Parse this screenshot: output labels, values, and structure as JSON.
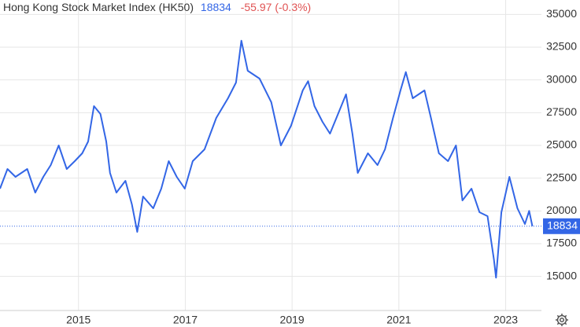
{
  "chart_data": {
    "type": "line",
    "title": "Hong Kong Stock Market Index (HK50)",
    "last_value": 18834,
    "change": "-55.97 (-0.3%)",
    "series": [
      {
        "name": "HK50",
        "color": "#3366e6",
        "x": [
          2013.53,
          2013.67,
          2013.82,
          2014.04,
          2014.19,
          2014.34,
          2014.48,
          2014.63,
          2014.78,
          2014.93,
          2015.07,
          2015.18,
          2015.29,
          2015.41,
          2015.52,
          2015.59,
          2015.71,
          2015.88,
          2016.0,
          2016.1,
          2016.21,
          2016.4,
          2016.55,
          2016.69,
          2016.84,
          2016.99,
          2017.14,
          2017.36,
          2017.58,
          2017.8,
          2017.95,
          2018.05,
          2018.17,
          2018.39,
          2018.61,
          2018.79,
          2018.98,
          2019.2,
          2019.3,
          2019.42,
          2019.57,
          2019.71,
          2019.83,
          2020.01,
          2020.13,
          2020.23,
          2020.42,
          2020.6,
          2020.74,
          2020.89,
          2021.03,
          2021.13,
          2021.26,
          2021.48,
          2021.6,
          2021.75,
          2021.92,
          2022.07,
          2022.19,
          2022.36,
          2022.51,
          2022.66,
          2022.78,
          2022.82,
          2022.92,
          2023.07,
          2023.22,
          2023.36,
          2023.44,
          2023.5
        ],
        "values": [
          21700,
          23200,
          22600,
          23200,
          21400,
          22600,
          23500,
          25000,
          23200,
          23800,
          24400,
          25300,
          28000,
          27400,
          25300,
          22900,
          21400,
          22300,
          20500,
          18400,
          21100,
          20200,
          21700,
          23800,
          22600,
          21700,
          23800,
          24700,
          27100,
          28600,
          29800,
          33000,
          30700,
          30100,
          28300,
          25000,
          26500,
          29200,
          29900,
          28000,
          26800,
          25900,
          27100,
          28900,
          25900,
          22900,
          24400,
          23500,
          24700,
          27100,
          29200,
          30600,
          28600,
          29200,
          27100,
          24400,
          23800,
          25000,
          20800,
          21700,
          19900,
          19600,
          16300,
          14900,
          19900,
          22600,
          20200,
          19000,
          20000,
          18834
        ]
      }
    ],
    "xlim": [
      2013.53,
      2023.67
    ],
    "xticks": [
      2015,
      2017,
      2019,
      2021,
      2023
    ],
    "ylim": [
      12400,
      36100
    ],
    "yticks": [
      15000,
      17500,
      20000,
      22500,
      25000,
      27500,
      30000,
      32500,
      35000
    ],
    "grid": true
  }
}
